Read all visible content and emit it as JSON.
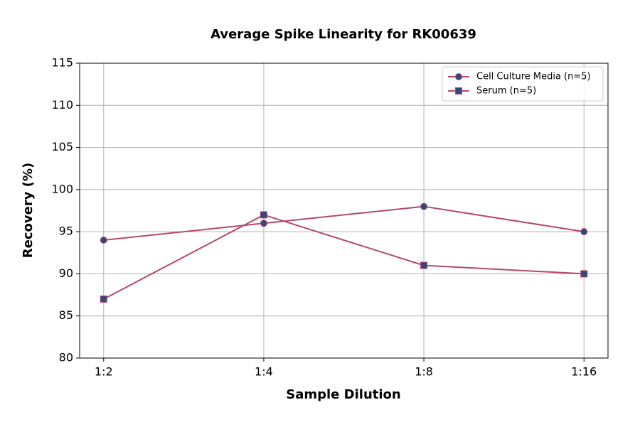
{
  "chart_data": {
    "type": "line",
    "title": "Average Spike Linearity for RK00639",
    "x_label": "Sample Dilution",
    "y_label": "Recovery (%)",
    "categories": [
      "1:2",
      "1:4",
      "1:8",
      "1:16"
    ],
    "series": [
      {
        "name": "Cell Culture Media (n=5)",
        "color": "#b5476f",
        "marker": "circle",
        "marker_color": "#2e4a7d",
        "values": [
          94,
          96,
          98,
          95
        ]
      },
      {
        "name": "Serum (n=5)",
        "color": "#b5476f",
        "marker": "square",
        "marker_color": "#2e4a7d",
        "values": [
          87,
          97,
          91,
          90
        ]
      }
    ],
    "ylim": [
      80,
      115
    ],
    "yticks": [
      80,
      85,
      90,
      95,
      100,
      105,
      110,
      115
    ],
    "grid": true,
    "legend": "upper right"
  }
}
